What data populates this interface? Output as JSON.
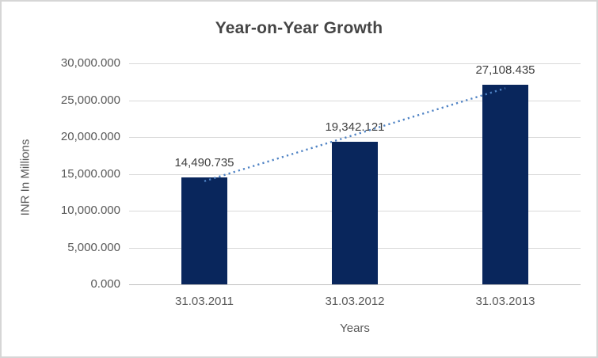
{
  "chart_data": {
    "type": "bar",
    "title": "Year-on-Year Growth",
    "xlabel": "Years",
    "ylabel": "INR In Millions",
    "categories": [
      "31.03.2011",
      "31.03.2012",
      "31.03.2013"
    ],
    "values": [
      14490.735,
      19342.121,
      27108.435
    ],
    "data_labels": [
      "14,490.735",
      "19,342.121",
      "27,108.435"
    ],
    "ylim": [
      0,
      30000
    ],
    "ytick_step": 5000,
    "ytick_labels": [
      "0.000",
      "5,000.000",
      "10,000.000",
      "15,000.000",
      "20,000.000",
      "25,000.000",
      "30,000.000"
    ],
    "grid": "horizontal",
    "legend": "none",
    "trendline": "linear-dotted",
    "colors": {
      "bar": "#09265c",
      "trendline": "#4e82c4",
      "gridline": "#d9d9d9",
      "axis_line": "#bfbfbf",
      "title_text": "#454545",
      "tick_text": "#595959",
      "data_label_text": "#404040",
      "frame_border": "#d6d6d6",
      "background": "#ffffff"
    }
  }
}
